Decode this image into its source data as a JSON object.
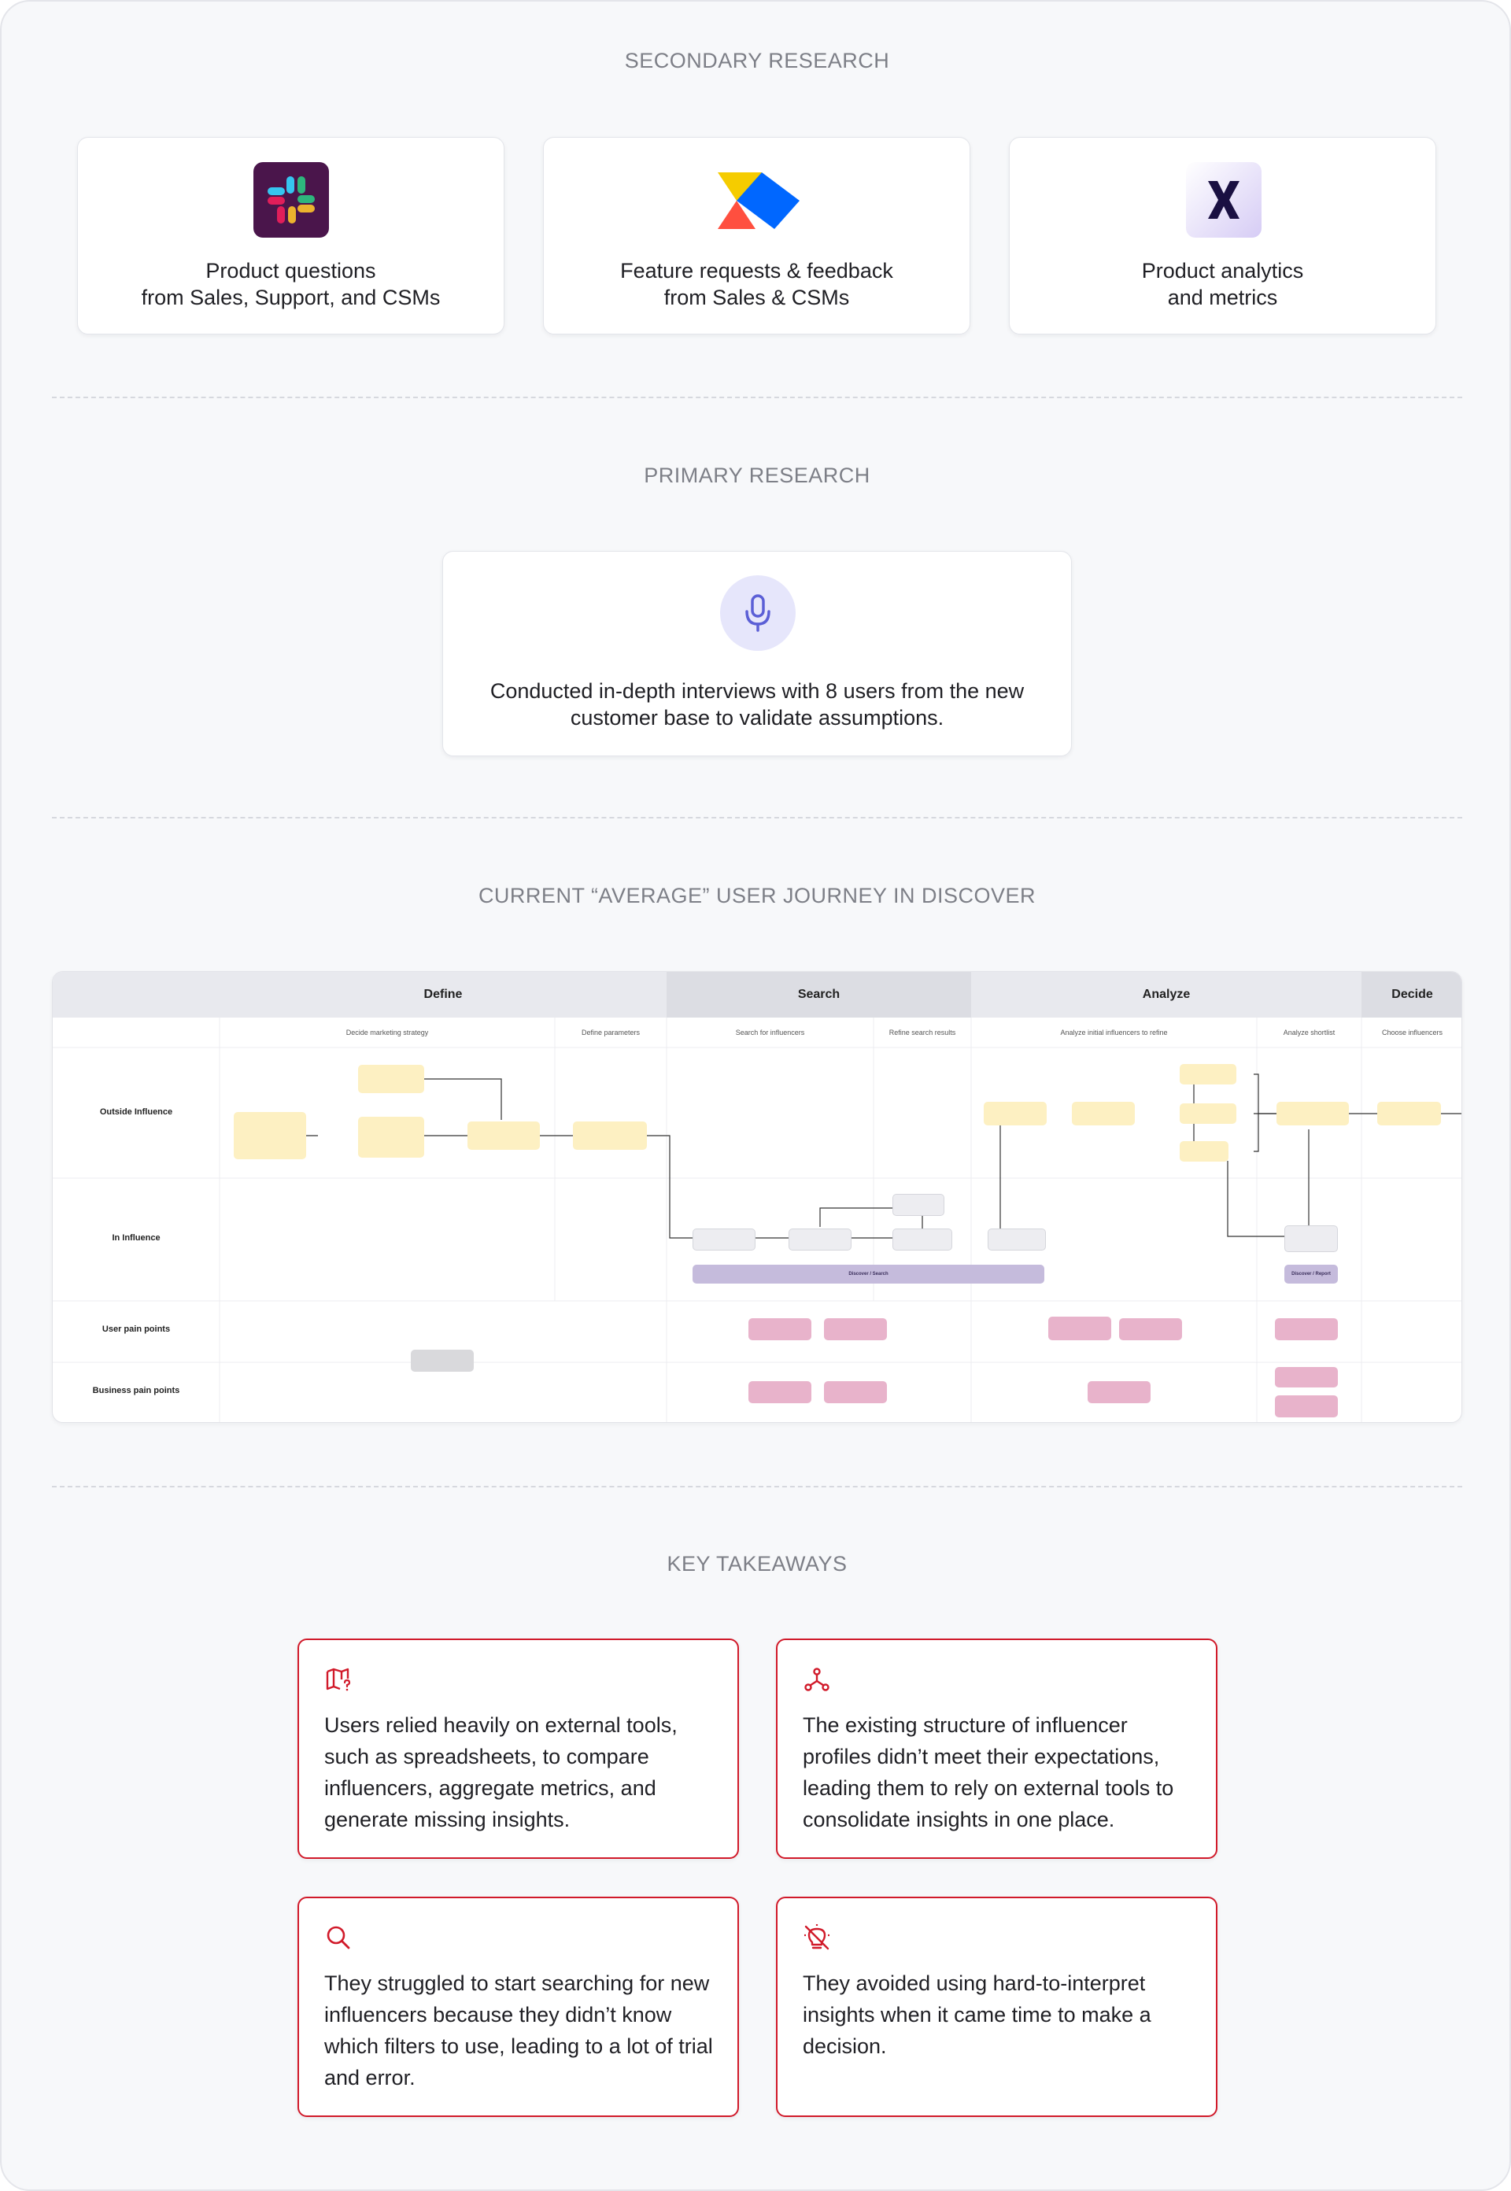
{
  "sections": {
    "secondary": "SECONDARY RESEARCH",
    "primary": "PRIMARY RESEARCH",
    "journey": "CURRENT “AVERAGE” USER JOURNEY IN DISCOVER",
    "takeaways": "KEY TAKEAWAYS"
  },
  "secondary_cards": [
    {
      "icon": "slack-logo",
      "text": "Product questions\nfrom Sales, Support, and CSMs"
    },
    {
      "icon": "productboard-logo",
      "text": "Feature requests & feedback\nfrom Sales & CSMs"
    },
    {
      "icon": "mixpanel-logo",
      "text": "Product analytics\nand metrics"
    }
  ],
  "primary_card": {
    "icon": "microphone-icon",
    "text": "Conducted in-depth interviews with 8 users from the new\ncustomer base to validate assumptions."
  },
  "journey_map": {
    "stages": [
      "Define",
      "Search",
      "Analyze",
      "Decide"
    ],
    "substages": [
      "Decide marketing strategy",
      "Define parameters",
      "Search for influencers",
      "Refine search results",
      "Analyze initial influencers to refine",
      "Analyze shortlist",
      "Choose influencers"
    ],
    "rows": [
      "Outside Influence",
      "In Influence",
      "User pain points",
      "Business pain points"
    ],
    "bars": [
      "Discover / Search",
      "Discover / Report"
    ],
    "colors": {
      "header": "#e8e9ee",
      "header_dark": "#dcdde3",
      "yellow": "#fdf0c2",
      "pink": "#e8b3cb",
      "purple": "#c5bbdc"
    }
  },
  "takeaways": [
    {
      "icon": "map-question-icon",
      "text": "Users relied heavily on external tools, such as spreadsheets, to compare influencers, aggregate metrics, and generate missing insights."
    },
    {
      "icon": "network-nodes-icon",
      "text": "The existing structure of influencer profiles didn’t meet their expectations, leading them to rely on external tools to consolidate insights in one place."
    },
    {
      "icon": "search-icon",
      "text": "They struggled to start searching for new influencers because they didn’t know which filters to use, leading to a lot of trial and error."
    },
    {
      "icon": "bulb-off-icon",
      "text": "They avoided using hard-to-interpret insights when it came time to make a decision."
    }
  ],
  "accent_color": "#d11a2a"
}
